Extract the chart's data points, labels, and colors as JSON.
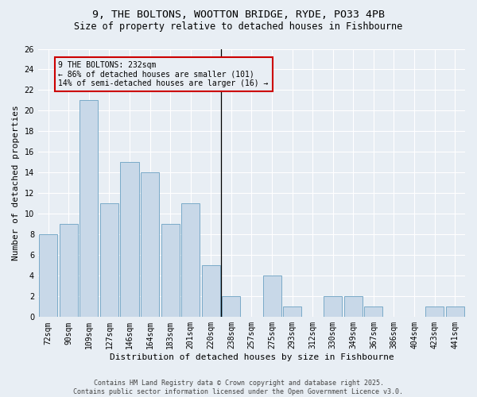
{
  "title1": "9, THE BOLTONS, WOOTTON BRIDGE, RYDE, PO33 4PB",
  "title2": "Size of property relative to detached houses in Fishbourne",
  "xlabel": "Distribution of detached houses by size in Fishbourne",
  "ylabel": "Number of detached properties",
  "categories": [
    "72sqm",
    "90sqm",
    "109sqm",
    "127sqm",
    "146sqm",
    "164sqm",
    "183sqm",
    "201sqm",
    "220sqm",
    "238sqm",
    "257sqm",
    "275sqm",
    "293sqm",
    "312sqm",
    "330sqm",
    "349sqm",
    "367sqm",
    "386sqm",
    "404sqm",
    "423sqm",
    "441sqm"
  ],
  "values": [
    8,
    9,
    21,
    11,
    15,
    14,
    9,
    11,
    5,
    2,
    0,
    4,
    1,
    0,
    2,
    2,
    1,
    0,
    0,
    1,
    1
  ],
  "bar_color": "#c8d8e8",
  "bar_edge_color": "#7aaac8",
  "annotation_text": "9 THE BOLTONS: 232sqm\n← 86% of detached houses are smaller (101)\n14% of semi-detached houses are larger (16) →",
  "annotation_box_color": "#cc0000",
  "ylim": [
    0,
    26
  ],
  "yticks": [
    0,
    2,
    4,
    6,
    8,
    10,
    12,
    14,
    16,
    18,
    20,
    22,
    24,
    26
  ],
  "background_color": "#e8eef4",
  "grid_color": "#ffffff",
  "footer_text": "Contains HM Land Registry data © Crown copyright and database right 2025.\nContains public sector information licensed under the Open Government Licence v3.0.",
  "title1_fontsize": 9.5,
  "title2_fontsize": 8.5,
  "xlabel_fontsize": 8,
  "ylabel_fontsize": 8,
  "tick_fontsize": 7,
  "annot_fontsize": 7,
  "footer_fontsize": 6
}
